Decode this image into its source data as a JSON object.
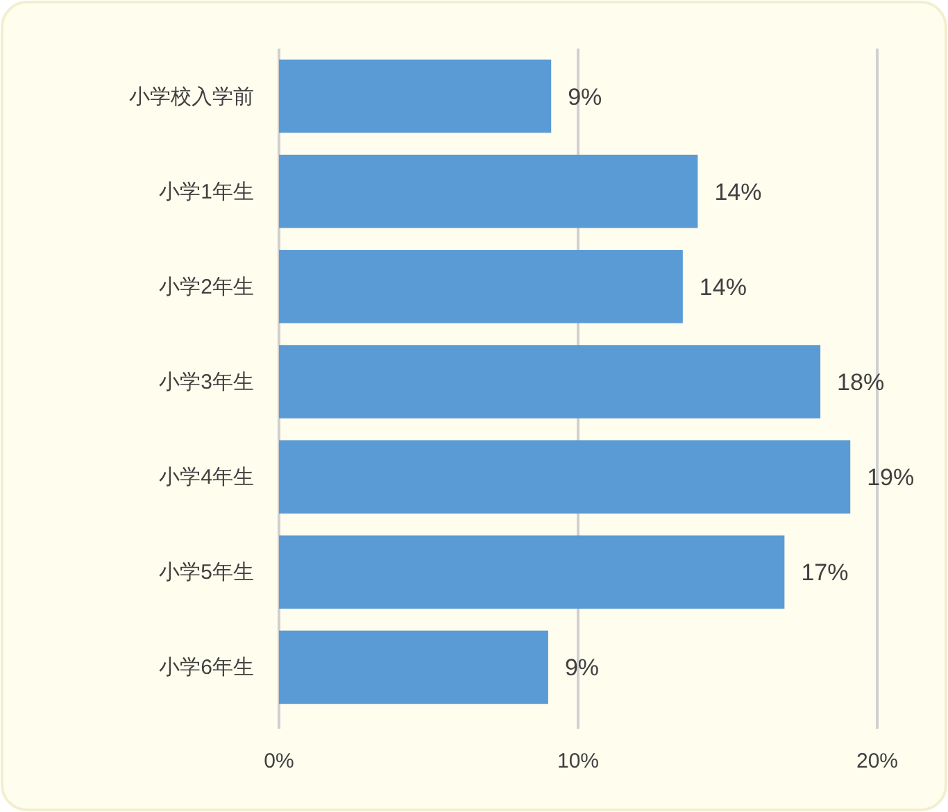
{
  "chart_data": {
    "type": "bar",
    "orientation": "horizontal",
    "categories": [
      "小学校入学前",
      "小学1年生",
      "小学2年生",
      "小学3年生",
      "小学4年生",
      "小学5年生",
      "小学6年生"
    ],
    "values": [
      9.1,
      14.0,
      13.5,
      18.1,
      19.1,
      16.9,
      9.0
    ],
    "value_labels": [
      "9%",
      "14%",
      "14%",
      "18%",
      "19%",
      "17%",
      "9%"
    ],
    "color": "#5b9bd5",
    "xlim": [
      0,
      20
    ],
    "xticks": [
      {
        "value": 0,
        "label": "0%"
      },
      {
        "value": 10,
        "label": "10%"
      },
      {
        "value": 20,
        "label": "20%"
      }
    ],
    "grid": "x"
  }
}
